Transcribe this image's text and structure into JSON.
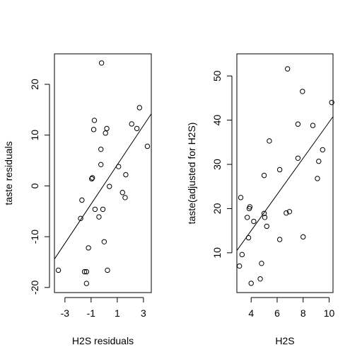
{
  "chart_data": [
    {
      "type": "scatter",
      "xlabel": "H2S residuals",
      "ylabel": "taste residuals",
      "xlim": [
        -3.8,
        3.6
      ],
      "ylim": [
        -21,
        26
      ],
      "xticks": [
        -3,
        -1,
        1,
        3
      ],
      "xtick_labels": [
        "-3",
        "-1",
        "1",
        "3"
      ],
      "yticks": [
        -20,
        -10,
        0,
        10,
        20
      ],
      "ytick_labels": [
        "-20",
        "-10",
        "0",
        "10",
        "20"
      ],
      "grid": false,
      "fit_line": {
        "x": [
          -3.8,
          3.6
        ],
        "y": [
          -14.4,
          14.2
        ]
      },
      "points": [
        {
          "x": -3.5,
          "y": -16.6
        },
        {
          "x": -1.8,
          "y": -6.4
        },
        {
          "x": -1.7,
          "y": -2.8
        },
        {
          "x": -1.5,
          "y": -16.9
        },
        {
          "x": -1.35,
          "y": -16.9
        },
        {
          "x": -1.35,
          "y": -19.2
        },
        {
          "x": -1.2,
          "y": -12.2
        },
        {
          "x": -0.95,
          "y": 1.4
        },
        {
          "x": -0.9,
          "y": 1.6
        },
        {
          "x": -0.8,
          "y": 11.1
        },
        {
          "x": -0.75,
          "y": 12.9
        },
        {
          "x": -0.7,
          "y": -4.6
        },
        {
          "x": -0.4,
          "y": -6.1
        },
        {
          "x": -0.25,
          "y": 7.2
        },
        {
          "x": -0.25,
          "y": 4.2
        },
        {
          "x": -0.2,
          "y": 24.2
        },
        {
          "x": -0.1,
          "y": -4.6
        },
        {
          "x": 0,
          "y": -11.0
        },
        {
          "x": 0.1,
          "y": 10.4
        },
        {
          "x": 0.2,
          "y": 11.3
        },
        {
          "x": 0.25,
          "y": -16.6
        },
        {
          "x": 0.4,
          "y": -0.1
        },
        {
          "x": 1.1,
          "y": 3.8
        },
        {
          "x": 1.4,
          "y": -1.3
        },
        {
          "x": 1.6,
          "y": -2.3
        },
        {
          "x": 1.65,
          "y": 2.2
        },
        {
          "x": 2.1,
          "y": 12.2
        },
        {
          "x": 2.5,
          "y": 11.3
        },
        {
          "x": 2.7,
          "y": 15.4
        },
        {
          "x": 3.3,
          "y": 7.8
        }
      ]
    },
    {
      "type": "scatter",
      "xlabel": "H2S",
      "ylabel": "taste(adjusted for H2S)",
      "xlim": [
        2.9,
        10.3
      ],
      "ylim": [
        1,
        55
      ],
      "xticks": [
        4,
        6,
        8,
        10
      ],
      "xtick_labels": [
        "4",
        "6",
        "8",
        "10"
      ],
      "yticks": [
        10,
        20,
        30,
        40,
        50
      ],
      "ytick_labels": [
        "10",
        "20",
        "30",
        "40",
        "50"
      ],
      "grid": false,
      "fit_line": {
        "x": [
          2.9,
          10.3
        ],
        "y": [
          10.5,
          40.8
        ]
      },
      "points": [
        {
          "x": 3.1,
          "y": 7.0
        },
        {
          "x": 3.2,
          "y": 22.5
        },
        {
          "x": 3.3,
          "y": 9.6
        },
        {
          "x": 3.7,
          "y": 18.0
        },
        {
          "x": 3.8,
          "y": 13.4
        },
        {
          "x": 3.85,
          "y": 20.0
        },
        {
          "x": 3.9,
          "y": 20.4
        },
        {
          "x": 4.0,
          "y": 3.1
        },
        {
          "x": 4.2,
          "y": 17.1
        },
        {
          "x": 4.7,
          "y": 4.1
        },
        {
          "x": 4.8,
          "y": 7.6
        },
        {
          "x": 5.0,
          "y": 27.5
        },
        {
          "x": 5.0,
          "y": 18.9
        },
        {
          "x": 5.05,
          "y": 18.0
        },
        {
          "x": 5.2,
          "y": 16.0
        },
        {
          "x": 5.4,
          "y": 35.3
        },
        {
          "x": 6.2,
          "y": 13.0
        },
        {
          "x": 6.2,
          "y": 28.8
        },
        {
          "x": 6.7,
          "y": 19.0
        },
        {
          "x": 6.8,
          "y": 51.6
        },
        {
          "x": 6.95,
          "y": 19.3
        },
        {
          "x": 7.6,
          "y": 31.4
        },
        {
          "x": 7.6,
          "y": 39.1
        },
        {
          "x": 7.95,
          "y": 46.5
        },
        {
          "x": 8.0,
          "y": 13.6
        },
        {
          "x": 8.75,
          "y": 38.8
        },
        {
          "x": 9.1,
          "y": 26.8
        },
        {
          "x": 9.2,
          "y": 30.7
        },
        {
          "x": 9.5,
          "y": 33.3
        },
        {
          "x": 10.2,
          "y": 44.0
        }
      ]
    }
  ]
}
